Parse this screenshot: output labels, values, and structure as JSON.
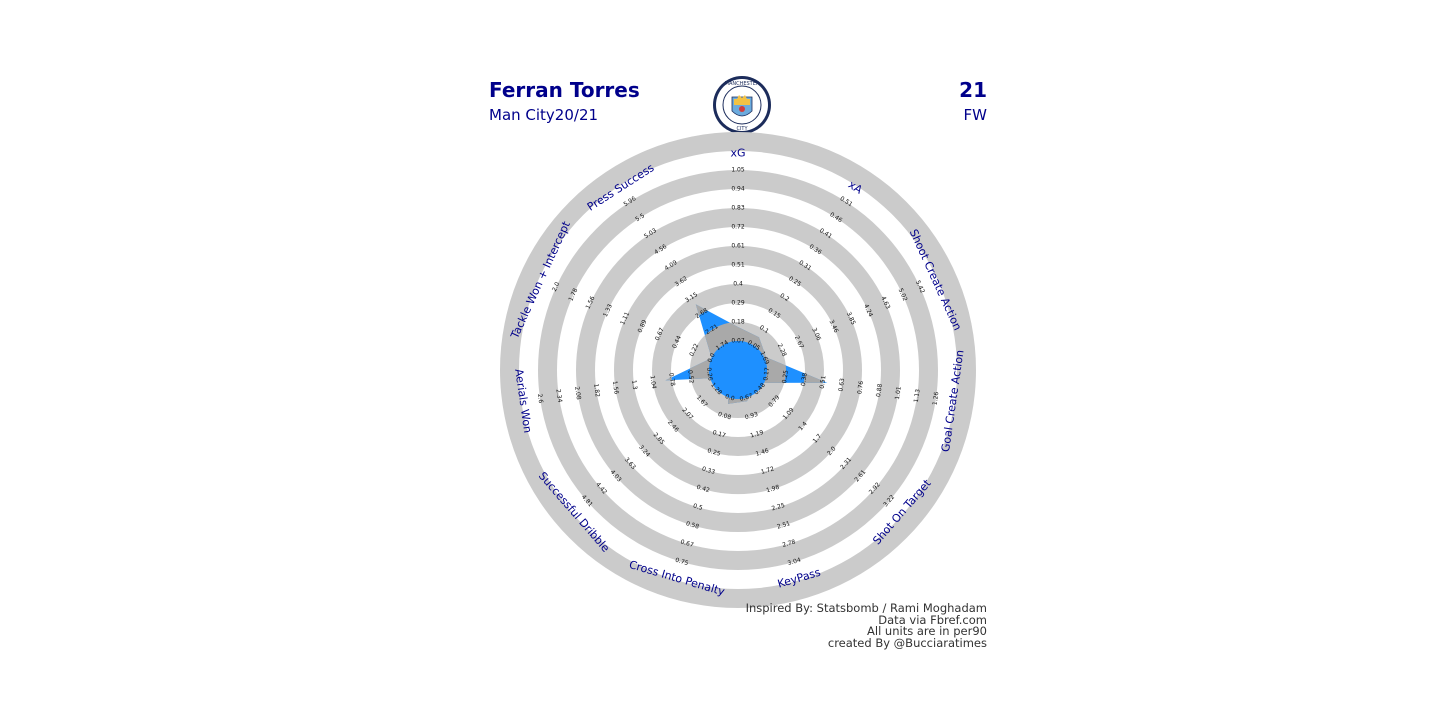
{
  "header": {
    "player_name": "Ferran Torres",
    "team_season": "Man City20/21",
    "shirt_number": "21",
    "position": "FW"
  },
  "badge": {
    "icon": "manchester-city-crest-icon",
    "top_text": "MANCHESTER",
    "bottom_text": "CITY",
    "colors": {
      "ring": "#1c2c5b",
      "sky": "#6cabdd",
      "gold": "#f3c244",
      "red": "#d13c3c"
    }
  },
  "footer": {
    "line1": "Inspired By: Statsbomb / Rami Moghadam",
    "line2": "Data via Fbref.com",
    "line3": "All units are in per90",
    "line4": "created By @Bucciaratimes"
  },
  "colors": {
    "label": "#00008b",
    "ring": "#cbcbcb",
    "player": "#1e90ff",
    "overlap": "#a9a9a9"
  },
  "chart_data": {
    "type": "radar",
    "rings": 6,
    "params": [
      {
        "name": "xG",
        "ticks": [
          "0.07",
          "0.18",
          "0.29",
          "0.4",
          "0.51",
          "0.61",
          "0.72",
          "0.83",
          "0.94",
          "1.05"
        ],
        "value": 0.24
      },
      {
        "name": "xA",
        "ticks": [
          "0.05",
          "0.1",
          "0.15",
          "0.2",
          "0.25",
          "0.31",
          "0.36",
          "0.41",
          "0.46",
          "0.51"
        ],
        "value": 0.12
      },
      {
        "name": "Shoot Create Action",
        "ticks": [
          "1.69",
          "2.28",
          "2.67",
          "3.06",
          "3.46",
          "3.85",
          "4.24",
          "4.63",
          "5.02",
          "5.42"
        ],
        "value": 2.1
      },
      {
        "name": "Goal Create Action",
        "ticks": [
          "0.17",
          "0.25",
          "0.38",
          "0.51",
          "0.63",
          "0.76",
          "0.88",
          "1.01",
          "1.13",
          "1.26"
        ],
        "value": 0.63
      },
      {
        "name": "Shot On Target",
        "ticks": [
          "0.48",
          "0.79",
          "1.09",
          "1.4",
          "1.7",
          "2.0",
          "2.31",
          "2.61",
          "2.92",
          "3.22"
        ],
        "value": 0.62
      },
      {
        "name": "KeyPass",
        "ticks": [
          "0.67",
          "0.93",
          "1.19",
          "1.46",
          "1.72",
          "1.98",
          "2.25",
          "2.51",
          "2.78",
          "3.04"
        ],
        "value": 0.95
      },
      {
        "name": "Cross Into Penalty",
        "ticks": [
          "0.0",
          "0.08",
          "0.17",
          "0.25",
          "0.33",
          "0.42",
          "0.5",
          "0.58",
          "0.67",
          "0.75"
        ],
        "value": 0.1
      },
      {
        "name": "Successful Dribble",
        "ticks": [
          "1.28",
          "1.67",
          "2.07",
          "2.46",
          "2.85",
          "3.24",
          "3.63",
          "4.03",
          "4.42",
          "4.81"
        ],
        "value": 1.3
      },
      {
        "name": "Aerials Won",
        "ticks": [
          "0.26",
          "0.52",
          "0.78",
          "1.04",
          "1.3",
          "1.56",
          "1.82",
          "2.08",
          "2.34",
          "2.6"
        ],
        "value": 1.04
      },
      {
        "name": "Tackle Won + Intercept",
        "ticks": [
          "0.0",
          "0.22",
          "0.44",
          "0.67",
          "0.89",
          "1.11",
          "1.33",
          "1.56",
          "1.78",
          "2.0"
        ],
        "value": 0.2
      },
      {
        "name": "Press Success",
        "ticks": [
          "1.74",
          "2.21",
          "2.68",
          "3.15",
          "3.62",
          "4.09",
          "4.56",
          "5.03",
          "5.5",
          "5.96"
        ],
        "value": 3.25
      }
    ]
  }
}
